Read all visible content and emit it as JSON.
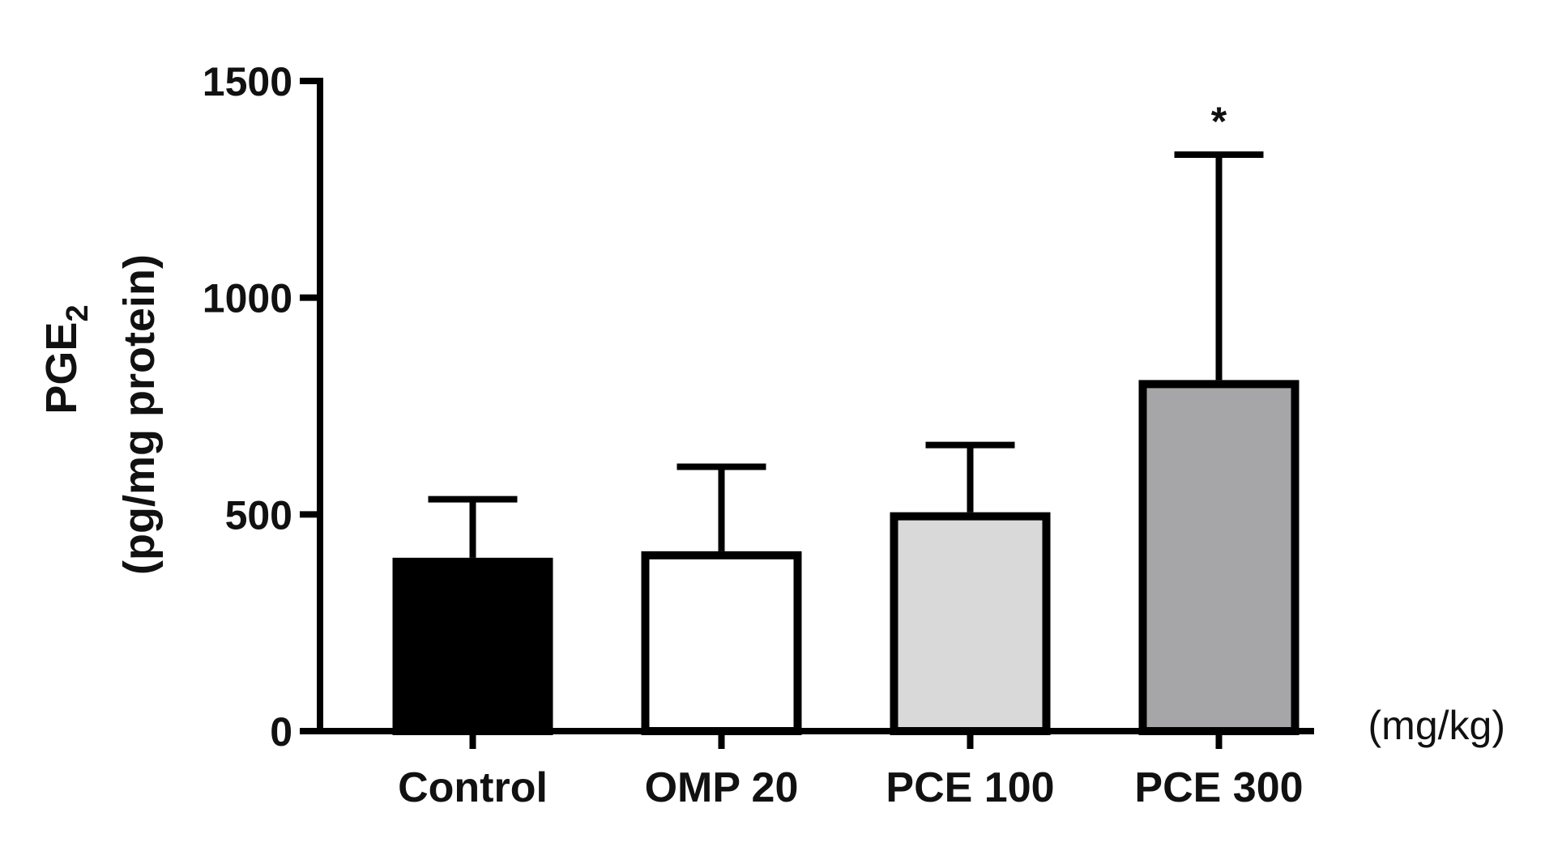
{
  "chart_data": {
    "type": "bar",
    "title": "",
    "xlabel": "",
    "ylabel_main": "PGE",
    "ylabel_subscript": "2",
    "ylabel_unit": "(pg/mg protein)",
    "x_unit_label": "(mg/kg)",
    "categories": [
      "Control",
      "OMP 20",
      "PCE 100",
      "PCE 300"
    ],
    "values": [
      400,
      415,
      505,
      810
    ],
    "errors": [
      135,
      195,
      155,
      520
    ],
    "bar_colors": [
      "#000000",
      "#ffffff",
      "#d9d9d9",
      "#a6a6a8"
    ],
    "significance": [
      "",
      "",
      "",
      "*"
    ],
    "ylim": [
      0,
      1500
    ],
    "yticks": [
      0,
      500,
      1000,
      1500
    ],
    "ytick_labels": [
      "0",
      "500",
      "1000",
      "1500"
    ],
    "grid": false,
    "legend": "none"
  }
}
